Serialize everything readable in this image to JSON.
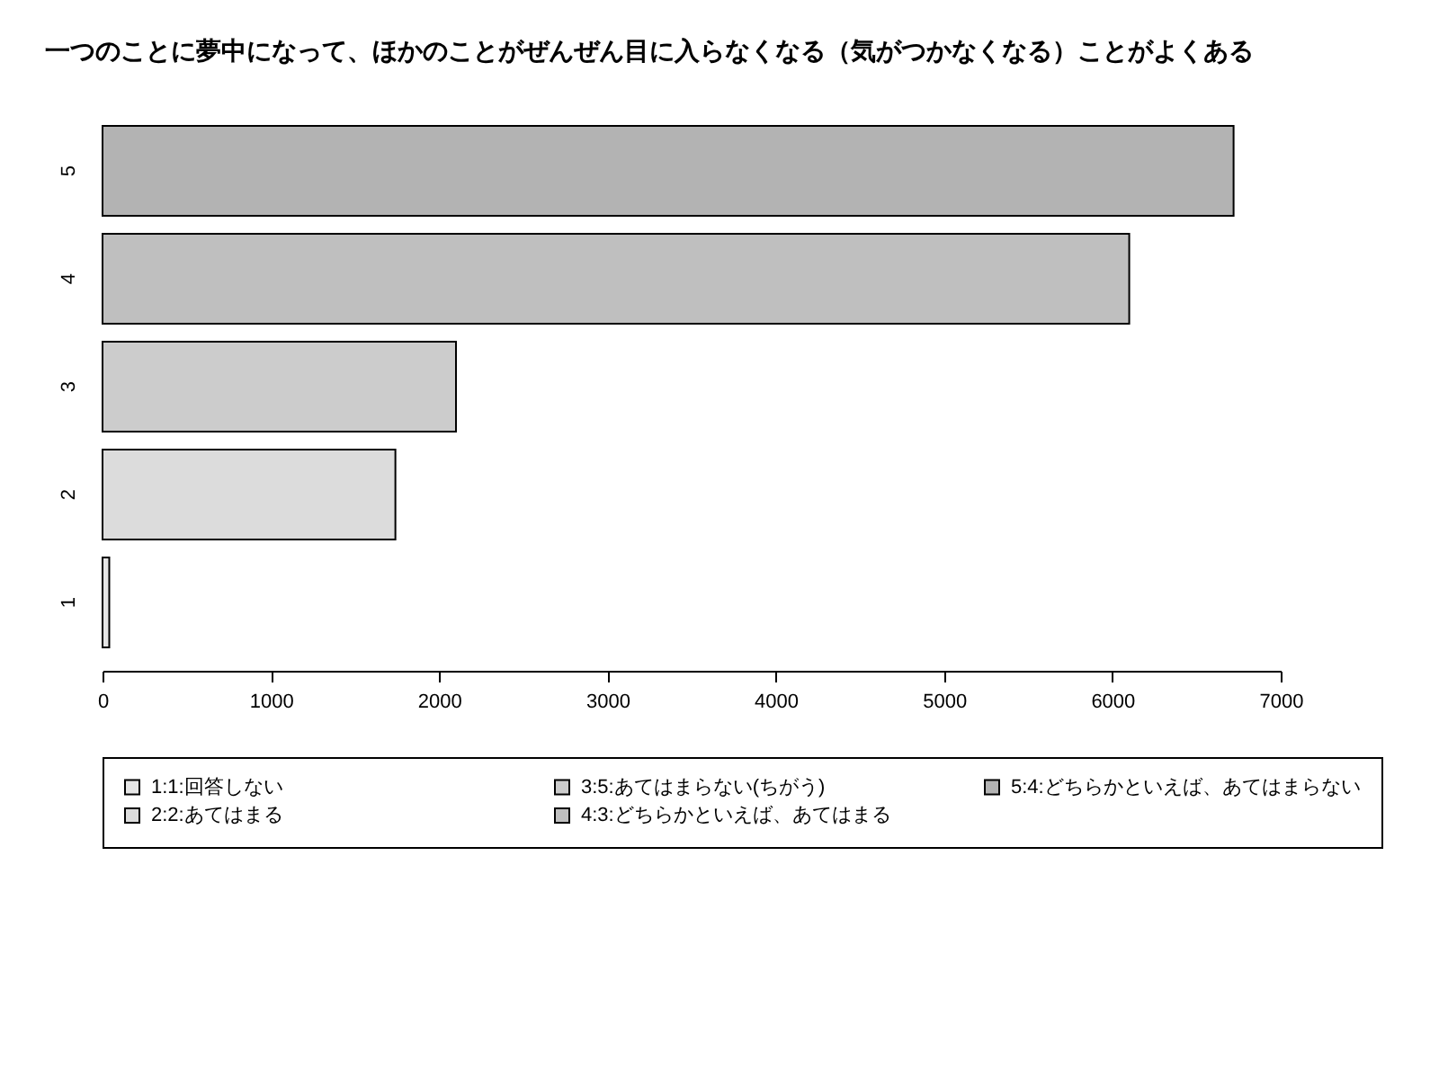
{
  "chart_data": {
    "type": "bar",
    "orientation": "horizontal",
    "title": "一つのことに夢中になって、ほかのことがぜんぜん目に入らなくなる（気がつかなくなる）ことがよくある",
    "categories": [
      "5",
      "4",
      "3",
      "2",
      "1"
    ],
    "series": [
      {
        "name": "1:1:回答しない",
        "color": "#e6e6e6",
        "values": [
          null,
          null,
          null,
          null,
          40
        ]
      },
      {
        "name": "2:2:あてはまる",
        "color": "#dcdcdc",
        "values": [
          null,
          null,
          null,
          1740,
          null
        ]
      },
      {
        "name": "3:5:あてはまらない(ちがう)",
        "color": "#cccccc",
        "values": [
          null,
          null,
          2100,
          null,
          null
        ]
      },
      {
        "name": "4:3:どちらかといえば、あてはまる",
        "color": "#bfbfbf",
        "values": [
          null,
          6100,
          null,
          null,
          null
        ]
      },
      {
        "name": "5:4:どちらかといえば、あてはまらない",
        "color": "#b3b3b3",
        "values": [
          6720,
          null,
          null,
          null,
          null
        ]
      }
    ],
    "xlim": [
      0,
      7000
    ],
    "xticks": [
      0,
      1000,
      2000,
      3000,
      4000,
      5000,
      6000,
      7000
    ],
    "legend": "bottom"
  }
}
